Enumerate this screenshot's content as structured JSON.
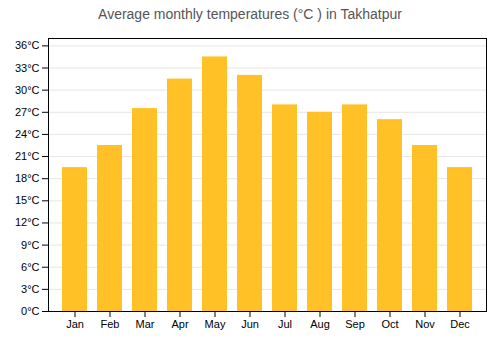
{
  "chart_data": {
    "type": "bar",
    "title": "Average monthly temperatures (°C ) in Takhatpur",
    "categories": [
      "Jan",
      "Feb",
      "Mar",
      "Apr",
      "May",
      "Jun",
      "Jul",
      "Aug",
      "Sep",
      "Oct",
      "Nov",
      "Dec"
    ],
    "values": [
      19.5,
      22.5,
      27.5,
      31.5,
      34.5,
      32.0,
      28.0,
      27.0,
      28.0,
      26.0,
      22.5,
      19.5
    ],
    "color": "#FFC125",
    "ylim": [
      0,
      37
    ],
    "yticks": [
      {
        "value": 0,
        "label": "0°C"
      },
      {
        "value": 3,
        "label": "3°C"
      },
      {
        "value": 6,
        "label": "6°C"
      },
      {
        "value": 9,
        "label": "9°C"
      },
      {
        "value": 12,
        "label": "12°C"
      },
      {
        "value": 15,
        "label": "15°C"
      },
      {
        "value": 18,
        "label": "18°C"
      },
      {
        "value": 21,
        "label": "21°C"
      },
      {
        "value": 24,
        "label": "24°C"
      },
      {
        "value": 27,
        "label": "27°C"
      },
      {
        "value": 30,
        "label": "30°C"
      },
      {
        "value": 33,
        "label": "33°C"
      },
      {
        "value": 36,
        "label": "36°C"
      }
    ],
    "grid": true
  }
}
